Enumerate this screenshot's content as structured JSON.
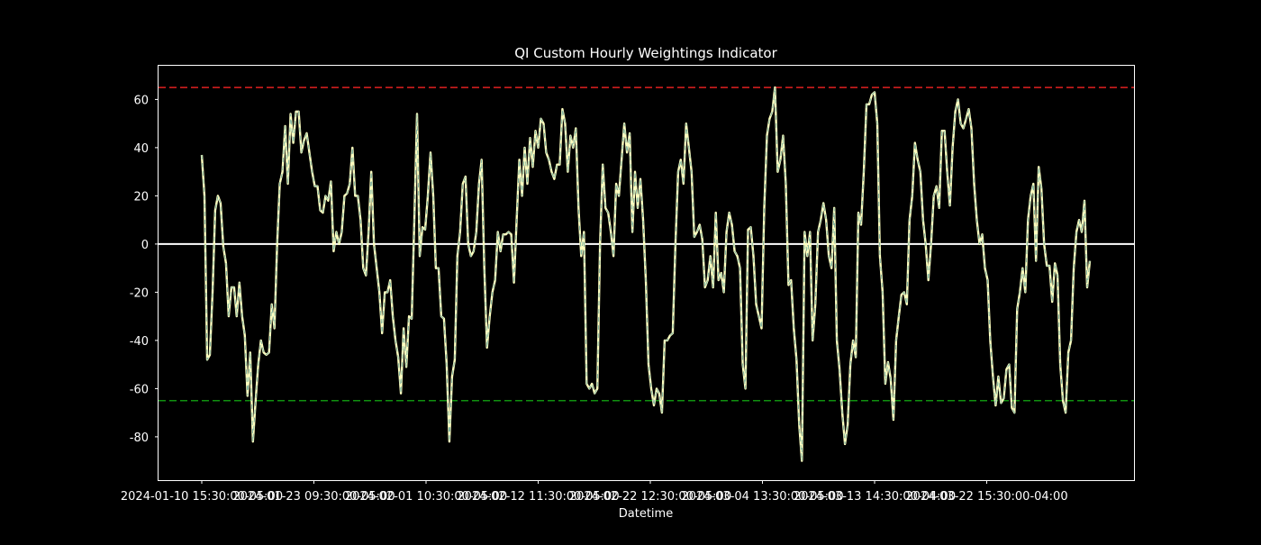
{
  "chart_data": {
    "type": "line",
    "title": "QI Custom Hourly Weightings Indicator",
    "xlabel": "Datetime",
    "ylabel": "",
    "ylim": [
      -98,
      74
    ],
    "y_ticks": [
      60,
      40,
      20,
      0,
      -20,
      -40,
      -60,
      -80
    ],
    "x_tick_labels": [
      "2024-01-10 15:30:00-05:00",
      "2024-01-23 09:30:00-05:00",
      "2024-02-01 10:30:00-05:00",
      "2024-02-12 11:30:00-05:00",
      "2024-02-22 12:30:00-05:00",
      "2024-03-04 13:30:00-05:00",
      "2024-03-13 14:30:00-04:00",
      "2024-03-22 15:30:00-04:00"
    ],
    "grid": false,
    "reference_lines": [
      {
        "value": 65,
        "color": "#e02020",
        "style": "dashed"
      },
      {
        "value": 0,
        "color": "#ffffff",
        "style": "solid"
      },
      {
        "value": -65,
        "color": "#109010",
        "style": "dashed"
      }
    ],
    "series": [
      {
        "name": "",
        "color": "#ffffc0",
        "overlay_color": "#7fb3a0",
        "x_range": [
          "2024-01-10 15:30:00-05:00",
          "2024-04-01"
        ],
        "values": [
          37,
          20,
          -48,
          -46,
          -20,
          14,
          20,
          17,
          -1,
          -8,
          -30,
          -18,
          -18,
          -30,
          -16,
          -30,
          -38,
          -63,
          -45,
          -82,
          -65,
          -50,
          -40,
          -45,
          -46,
          -45,
          -25,
          -35,
          0,
          25,
          30,
          49,
          25,
          54,
          42,
          55,
          55,
          38,
          43,
          46,
          38,
          30,
          24,
          24,
          14,
          13,
          20,
          18,
          26,
          -3,
          5,
          0,
          5,
          20,
          21,
          25,
          40,
          20,
          20,
          10,
          -10,
          -13,
          5,
          30,
          0,
          -10,
          -20,
          -37,
          -20,
          -20,
          -15,
          -30,
          -40,
          -47,
          -62,
          -35,
          -51,
          -30,
          -31,
          10,
          54,
          -5,
          7,
          6,
          20,
          38,
          20,
          -10,
          -10,
          -30,
          -31,
          -50,
          -82,
          -55,
          -48,
          -5,
          5,
          25,
          28,
          0,
          -5,
          -3,
          5,
          25,
          35,
          -10,
          -43,
          -30,
          -20,
          -15,
          5,
          -3,
          4,
          4,
          5,
          4,
          -16,
          10,
          35,
          20,
          40,
          25,
          44,
          32,
          47,
          40,
          52,
          50,
          38,
          35,
          30,
          27,
          33,
          33,
          56,
          50,
          30,
          45,
          40,
          48,
          15,
          -5,
          5,
          -58,
          -60,
          -58,
          -62,
          -60,
          0,
          33,
          15,
          13,
          5,
          -5,
          25,
          20,
          35,
          50,
          38,
          46,
          5,
          30,
          15,
          27,
          10,
          -15,
          -50,
          -60,
          -67,
          -60,
          -62,
          -70,
          -40,
          -40,
          -38,
          -37,
          0,
          30,
          35,
          25,
          50,
          40,
          30,
          3,
          5,
          8,
          2,
          -18,
          -15,
          -5,
          -18,
          13,
          -15,
          -12,
          -20,
          5,
          13,
          8,
          -3,
          -5,
          -10,
          -50,
          -60,
          6,
          7,
          -5,
          -25,
          -30,
          -35,
          15,
          45,
          52,
          55,
          65,
          30,
          35,
          45,
          25,
          -17,
          -15,
          -35,
          -48,
          -75,
          -90,
          5,
          -5,
          5,
          -40,
          -25,
          5,
          10,
          17,
          10,
          -5,
          -10,
          15,
          -40,
          -52,
          -70,
          -83,
          -75,
          -50,
          -40,
          -47,
          13,
          8,
          30,
          58,
          58,
          62,
          63,
          50,
          -5,
          -20,
          -58,
          -49,
          -56,
          -73,
          -40,
          -30,
          -21,
          -20,
          -25,
          10,
          20,
          42,
          35,
          30,
          10,
          0,
          -15,
          0,
          20,
          24,
          15,
          47,
          47,
          30,
          16,
          40,
          55,
          60,
          50,
          48,
          52,
          56,
          48,
          25,
          10,
          0,
          4,
          -10,
          -15,
          -40,
          -55,
          -67,
          -55,
          -66,
          -64,
          -52,
          -50,
          -68,
          -70,
          -27,
          -20,
          -10,
          -20,
          10,
          20,
          25,
          -7,
          32,
          23,
          0,
          -9,
          -9,
          -24,
          -8,
          -13,
          -50,
          -65,
          -70,
          -45,
          -40,
          -10,
          5,
          10,
          5,
          18,
          -18,
          -7
        ]
      }
    ]
  }
}
